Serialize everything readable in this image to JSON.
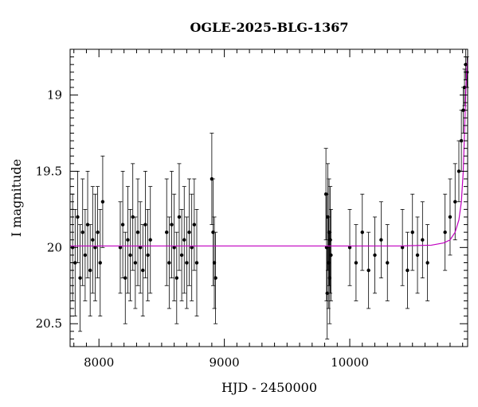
{
  "chart_data": {
    "type": "scatter",
    "title": "OGLE-2025-BLG-1367",
    "xlabel": "HJD - 2450000",
    "ylabel": "I magnitude",
    "xlim": [
      7770,
      10940
    ],
    "ylim": [
      20.65,
      18.7
    ],
    "y_inverted": true,
    "xticks": [
      8000,
      9000,
      10000
    ],
    "xtick_labels": [
      "8000",
      "9000",
      "10000"
    ],
    "yticks": [
      19,
      19.5,
      20,
      20.5
    ],
    "ytick_labels": [
      "19",
      "19.5",
      "20",
      "20.5"
    ],
    "grid": false,
    "legend": "none",
    "colors": {
      "points": "#000000",
      "model": "#c000c0"
    },
    "series": [
      {
        "type": "scatter-errorbars",
        "x": [
          7790,
          7810,
          7830,
          7850,
          7870,
          7890,
          7910,
          7930,
          7950,
          7970,
          7990,
          8010,
          8030,
          8170,
          8190,
          8210,
          8230,
          8250,
          8270,
          8290,
          8310,
          8330,
          8350,
          8370,
          8390,
          8410,
          8540,
          8560,
          8580,
          8600,
          8620,
          8640,
          8660,
          8680,
          8700,
          8720,
          8740,
          8760,
          8780,
          8900,
          8910,
          8920,
          8930,
          9810,
          9815,
          9820,
          9825,
          9830,
          9835,
          9840,
          9845,
          9850,
          10000,
          10050,
          10100,
          10150,
          10200,
          10250,
          10300,
          10420,
          10460,
          10500,
          10540,
          10580,
          10620,
          10760,
          10800,
          10840,
          10870,
          10890,
          10905,
          10915,
          10925,
          10935
        ],
        "y": [
          20.0,
          20.1,
          19.8,
          20.2,
          19.9,
          20.05,
          19.85,
          20.15,
          19.95,
          20.0,
          19.9,
          20.1,
          19.7,
          20.0,
          19.85,
          20.2,
          19.95,
          20.05,
          19.8,
          20.1,
          19.9,
          20.0,
          20.15,
          19.85,
          20.05,
          19.95,
          19.9,
          20.1,
          19.85,
          20.0,
          20.2,
          19.8,
          20.05,
          19.95,
          20.1,
          19.9,
          20.0,
          19.85,
          20.1,
          19.55,
          19.9,
          20.1,
          20.2,
          19.65,
          20.0,
          20.3,
          19.8,
          20.1,
          19.9,
          20.2,
          19.95,
          20.05,
          20.0,
          20.1,
          19.9,
          20.15,
          20.05,
          19.95,
          20.1,
          20.0,
          20.15,
          19.9,
          20.05,
          19.95,
          20.1,
          19.9,
          19.8,
          19.7,
          19.5,
          19.3,
          19.1,
          18.95,
          18.8,
          18.85
        ],
        "yerr": [
          0.35,
          0.35,
          0.3,
          0.35,
          0.35,
          0.3,
          0.35,
          0.3,
          0.35,
          0.35,
          0.3,
          0.35,
          0.3,
          0.3,
          0.35,
          0.3,
          0.35,
          0.3,
          0.35,
          0.3,
          0.35,
          0.3,
          0.3,
          0.35,
          0.3,
          0.35,
          0.35,
          0.3,
          0.35,
          0.35,
          0.3,
          0.35,
          0.3,
          0.35,
          0.3,
          0.35,
          0.35,
          0.3,
          0.35,
          0.3,
          0.35,
          0.3,
          0.3,
          0.3,
          0.35,
          0.3,
          0.35,
          0.3,
          0.35,
          0.3,
          0.35,
          0.3,
          0.25,
          0.25,
          0.25,
          0.25,
          0.25,
          0.25,
          0.25,
          0.25,
          0.25,
          0.25,
          0.25,
          0.25,
          0.25,
          0.25,
          0.25,
          0.25,
          0.2,
          0.2,
          0.15,
          0.12,
          0.1,
          0.1
        ]
      }
    ],
    "model": {
      "x": [
        7770,
        8500,
        9500,
        10400,
        10650,
        10750,
        10800,
        10840,
        10870,
        10890,
        10905,
        10915,
        10925,
        10932,
        10938,
        10940
      ],
      "y": [
        19.99,
        19.99,
        19.99,
        19.99,
        19.985,
        19.97,
        19.95,
        19.9,
        19.82,
        19.7,
        19.5,
        19.25,
        18.98,
        18.85,
        18.78,
        18.76
      ]
    }
  }
}
